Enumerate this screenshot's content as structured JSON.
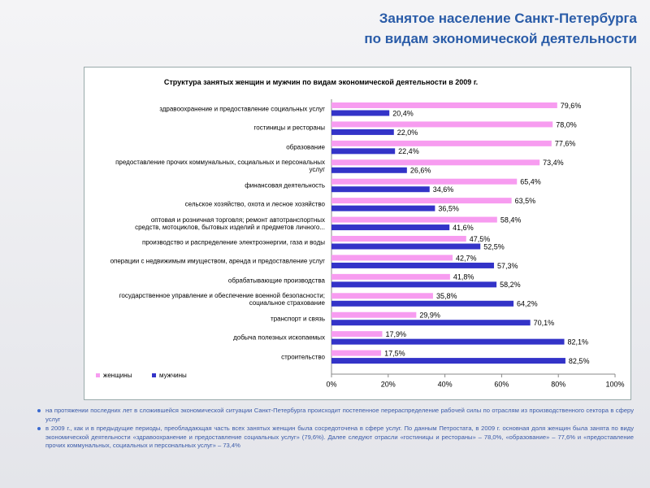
{
  "header": {
    "title_lines": [
      "Занятое население Санкт-Петербурга",
      "по видам экономической деятельности"
    ]
  },
  "chart_data": {
    "type": "bar",
    "horizontal": true,
    "title": "Структура занятых женщин и мужчин по видам экономической деятельности в 2009 г.",
    "categories": [
      "здравоохранение и предоставление социальных услуг",
      "гостиницы и рестораны",
      "образование",
      "предоставление прочих коммунальных, социальных и персональных\nуслуг",
      "финансовая деятельность",
      "сельское хозяйство, охота и лесное хозяйство",
      "оптовая и розничная торговля; ремонт автотранспортных\nсредств, мотоциклов, бытовых изделий и предметов личного...",
      "производство и распределение электроэнергии, газа и воды",
      "операции с недвижимым имуществом, аренда и предоставление услуг",
      "обрабатывающие производства",
      "государственное управление и обеспечение военной безопасности;\nсоциальное страхование",
      "транспорт и связь",
      "добыча полезных ископаемых",
      "строительство"
    ],
    "series": [
      {
        "name": "женщины",
        "color": "#f79cf0",
        "values": [
          79.6,
          78.0,
          77.6,
          73.4,
          65.4,
          63.5,
          58.4,
          47.5,
          42.7,
          41.8,
          35.8,
          29.9,
          17.9,
          17.5
        ],
        "value_labels": [
          "79,6%",
          "78,0%",
          "77,6%",
          "73,4%",
          "65,4%",
          "63,5%",
          "58,4%",
          "47,5%",
          "42,7%",
          "41,8%",
          "35,8%",
          "29,9%",
          "17,9%",
          "17,5%"
        ]
      },
      {
        "name": "мужчины",
        "color": "#3333c8",
        "values": [
          20.4,
          22.0,
          22.4,
          26.6,
          34.6,
          36.5,
          41.6,
          52.5,
          57.3,
          58.2,
          64.2,
          70.1,
          82.1,
          82.5
        ],
        "value_labels": [
          "20,4%",
          "22,0%",
          "22,4%",
          "26,6%",
          "34,6%",
          "36,5%",
          "41,6%",
          "52,5%",
          "57,3%",
          "58,2%",
          "64,2%",
          "70,1%",
          "82,1%",
          "82,5%"
        ]
      }
    ],
    "xlim": [
      0,
      100
    ],
    "xticks": [
      {
        "value": 0,
        "label": "0%"
      },
      {
        "value": 20,
        "label": "20%"
      },
      {
        "value": 40,
        "label": "40%"
      },
      {
        "value": 60,
        "label": "60%"
      },
      {
        "value": 80,
        "label": "80%"
      },
      {
        "value": 100,
        "label": "100%"
      }
    ],
    "legend": "bottom-left"
  },
  "bullets": [
    "на протяжении последних лет в сложившейся экономической ситуации Санкт-Петербурга происходит постепенное перераспределение рабочей силы по отраслям из производственного сектора в сферу услуг",
    "в 2009 г., как и в предыдущие периоды, преобладающая часть всех занятых женщин была сосредоточена в сфере услуг. По данным Петростата, в 2009 г. основная доля женщин была занята по виду экономической деятельности «здравоохранение и предоставление социальных услуг» (79,6%). Далее следуют отрасли «гостиницы и рестораны» – 78,0%, «образование» – 77,6% и «предоставление прочих коммунальных, социальных и персональных услуг» – 73,4%"
  ]
}
